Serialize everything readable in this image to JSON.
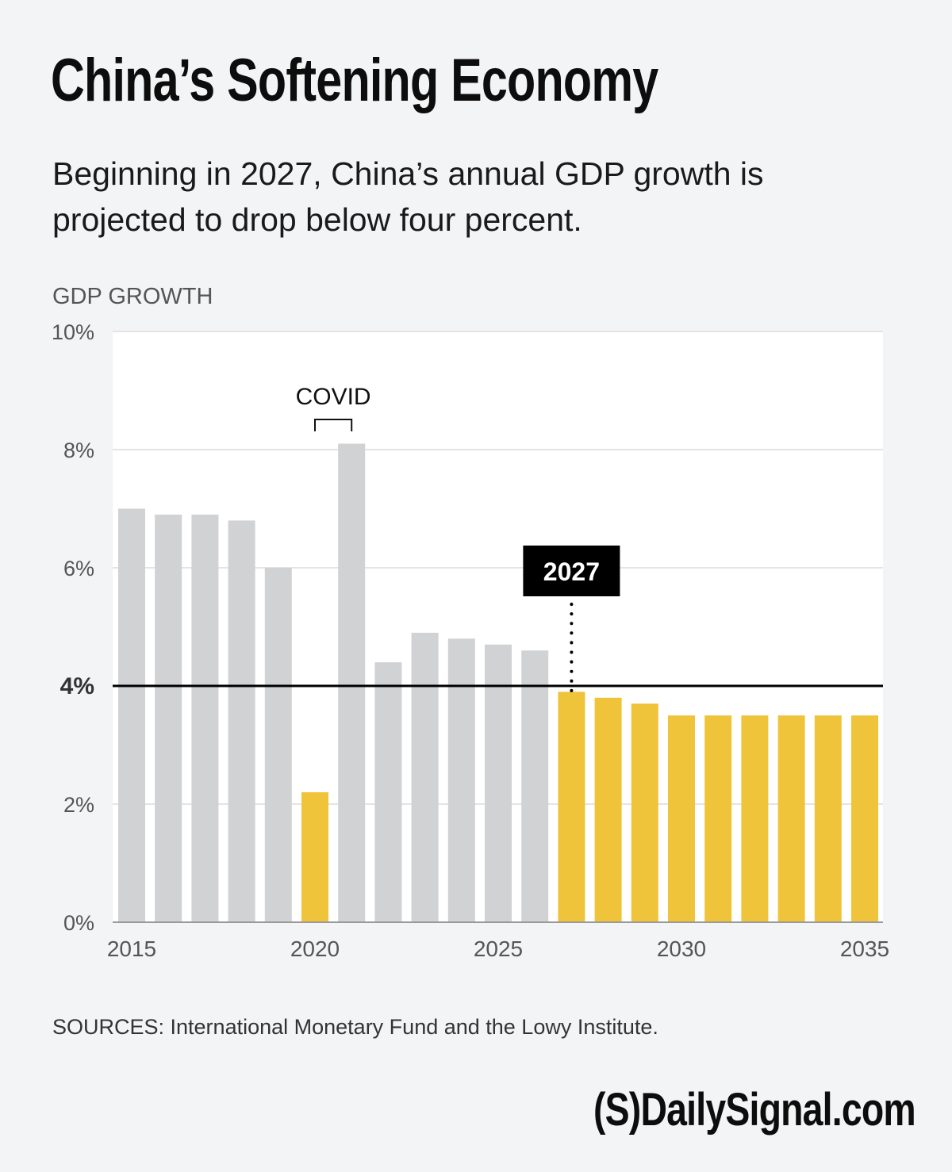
{
  "header": {
    "title": "China’s Softening Economy",
    "subtitle": "Beginning in 2027, China’s annual GDP growth is projected to drop below four percent."
  },
  "footer": {
    "source": "SOURCES: International Monetary Fund and the Lowy Institute.",
    "logo": "(S)DailySignal.com"
  },
  "colors": {
    "background": "#f3f4f6",
    "plot_background": "#ffffff",
    "gray_bar": "#d1d2d4",
    "highlight_bar": "#f0c43a",
    "reference_line": "#000000",
    "gridline": "#e4e4e4"
  },
  "chart_data": {
    "type": "bar",
    "title": "China’s Softening Economy",
    "subtitle": "Beginning in 2027, China’s annual GDP growth is projected to drop below four percent.",
    "xlabel": "",
    "ylabel": "GDP GROWTH",
    "ylim": [
      0,
      10
    ],
    "yticks": [
      0,
      2,
      4,
      6,
      8,
      10
    ],
    "ytick_labels": [
      "0%",
      "2%",
      "4%",
      "6%",
      "8%",
      "10%"
    ],
    "xtick_labels": [
      "2015",
      "2020",
      "2025",
      "2030",
      "2035"
    ],
    "grid": true,
    "categories": [
      "2015",
      "2016",
      "2017",
      "2018",
      "2019",
      "2020",
      "2021",
      "2022",
      "2023",
      "2024",
      "2025",
      "2026",
      "2027",
      "2028",
      "2029",
      "2030",
      "2031",
      "2032",
      "2033",
      "2034",
      "2035"
    ],
    "values": [
      7.0,
      6.9,
      6.9,
      6.8,
      6.0,
      2.2,
      8.1,
      4.4,
      4.9,
      4.8,
      4.7,
      4.6,
      3.9,
      3.8,
      3.7,
      3.5,
      3.5,
      3.5,
      3.5,
      3.5,
      3.5
    ],
    "highlighted": [
      "2020",
      "2027",
      "2028",
      "2029",
      "2030",
      "2031",
      "2032",
      "2033",
      "2034",
      "2035"
    ],
    "reference_line": {
      "value": 4,
      "label": "4%"
    },
    "annotations": [
      {
        "label": "COVID",
        "span": [
          "2020",
          "2021"
        ]
      },
      {
        "label": "2027",
        "at": "2027",
        "style": "black-callout"
      }
    ],
    "legend": "none"
  }
}
